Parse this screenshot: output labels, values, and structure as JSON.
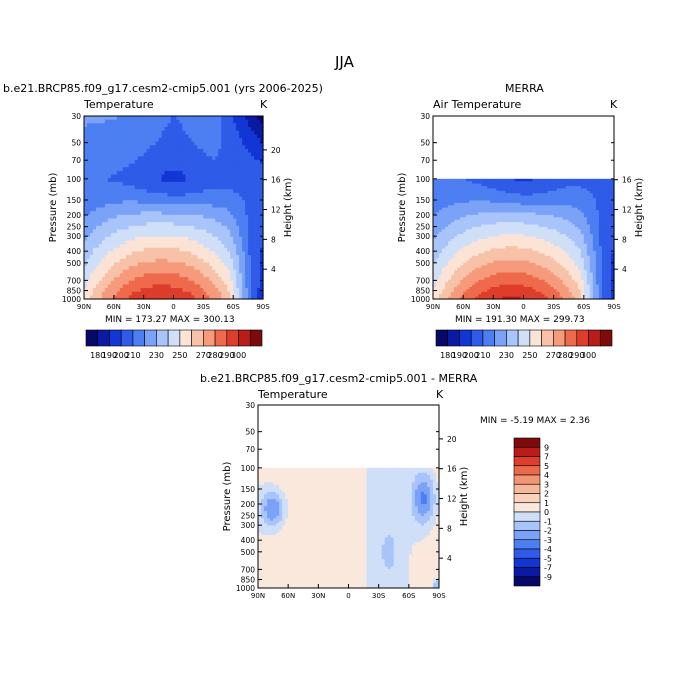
{
  "page": {
    "season_title": "JJA",
    "panel1": {
      "case_title": "b.e21.BRCP85.f09_g17.cesm2-cmip5.001 (yrs 2006-2025)",
      "left_label": "Temperature",
      "unit": "K",
      "minmax": "MIN = 173.27   MAX = 300.13"
    },
    "panel2": {
      "case_title": "MERRA",
      "left_label": "Air Temperature",
      "unit": "K",
      "minmax": "MIN = 191.30   MAX = 299.73"
    },
    "panel3": {
      "case_title": "b.e21.BRCP85.f09_g17.cesm2-cmip5.001 - MERRA",
      "left_label": "Temperature",
      "unit": "K",
      "minmax": "MIN =   -5.19   MAX =    2.36"
    },
    "axis": {
      "ylabel_left": "Pressure (mb)",
      "ylabel_right": "Height (km)"
    },
    "colors": {
      "abs_scale": [
        "#08086b",
        "#0a1aa3",
        "#1236d4",
        "#2f5be8",
        "#4d7ff2",
        "#7aa2f7",
        "#a8c4fb",
        "#cfdff8",
        "#fbe3d6",
        "#f8c2a8",
        "#f59a7a",
        "#ef6a4c",
        "#dd3d2a",
        "#b81d18",
        "#7e0b0b"
      ],
      "diff_scale": [
        "#08086b",
        "#0a1aa3",
        "#1236d4",
        "#2f5be8",
        "#4d7ff2",
        "#7aa2f7",
        "#a8c4fb",
        "#cfdff8",
        "#fbe8dc",
        "#f8d2bc",
        "#f6b899",
        "#f29574",
        "#ec6a4c",
        "#dd3d2a",
        "#b81d18",
        "#7e0b0b"
      ]
    }
  },
  "chart_data": [
    {
      "type": "heatmap",
      "title": "Temperature",
      "units": "K",
      "xlabel": "",
      "ylabel": "Pressure (mb)",
      "ylabel_right": "Height (km)",
      "x_ticks": [
        "90N",
        "60N",
        "30N",
        "0",
        "30S",
        "60S",
        "90S"
      ],
      "y_ticks": [
        30,
        50,
        70,
        100,
        150,
        200,
        250,
        300,
        400,
        500,
        700,
        850,
        1000
      ],
      "y_ticks_right": [
        4,
        8,
        12,
        16,
        20
      ],
      "y_scale": "log",
      "ylim": [
        30,
        1000
      ],
      "min": 173.27,
      "max": 300.13,
      "colorbar_labels": [
        180,
        190,
        200,
        210,
        230,
        250,
        270,
        280,
        290,
        300
      ],
      "colorbar_position": "bottom"
    },
    {
      "type": "heatmap",
      "title": "Air Temperature",
      "units": "K",
      "xlabel": "",
      "ylabel": "Pressure (mb)",
      "ylabel_right": "Height (km)",
      "x_ticks": [
        "90N",
        "60N",
        "30N",
        "0",
        "30S",
        "60S",
        "90S"
      ],
      "y_ticks": [
        30,
        50,
        70,
        100,
        150,
        200,
        250,
        300,
        400,
        500,
        700,
        850,
        1000
      ],
      "y_ticks_right": [
        4,
        8,
        12,
        16
      ],
      "y_scale": "log",
      "ylim": [
        30,
        1000
      ],
      "data_ylim": [
        100,
        1000
      ],
      "min": 191.3,
      "max": 299.73,
      "colorbar_labels": [
        180,
        190,
        200,
        210,
        230,
        250,
        270,
        280,
        290,
        300
      ],
      "colorbar_position": "bottom"
    },
    {
      "type": "heatmap",
      "title": "Temperature",
      "units": "K",
      "xlabel": "",
      "ylabel": "Pressure (mb)",
      "ylabel_right": "Height (km)",
      "x_ticks": [
        "90N",
        "60N",
        "30N",
        "0",
        "30S",
        "60S",
        "90S"
      ],
      "y_ticks": [
        30,
        50,
        70,
        100,
        150,
        200,
        250,
        300,
        400,
        500,
        700,
        850,
        1000
      ],
      "y_ticks_right": [
        4,
        8,
        12,
        16,
        20
      ],
      "y_scale": "log",
      "ylim": [
        30,
        1000
      ],
      "data_ylim": [
        100,
        1000
      ],
      "min": -5.19,
      "max": 2.36,
      "colorbar_labels": [
        9,
        7,
        5,
        4,
        3,
        2,
        1,
        0,
        -1,
        -2,
        -3,
        -4,
        -5,
        -7,
        -9
      ],
      "colorbar_position": "right"
    }
  ]
}
